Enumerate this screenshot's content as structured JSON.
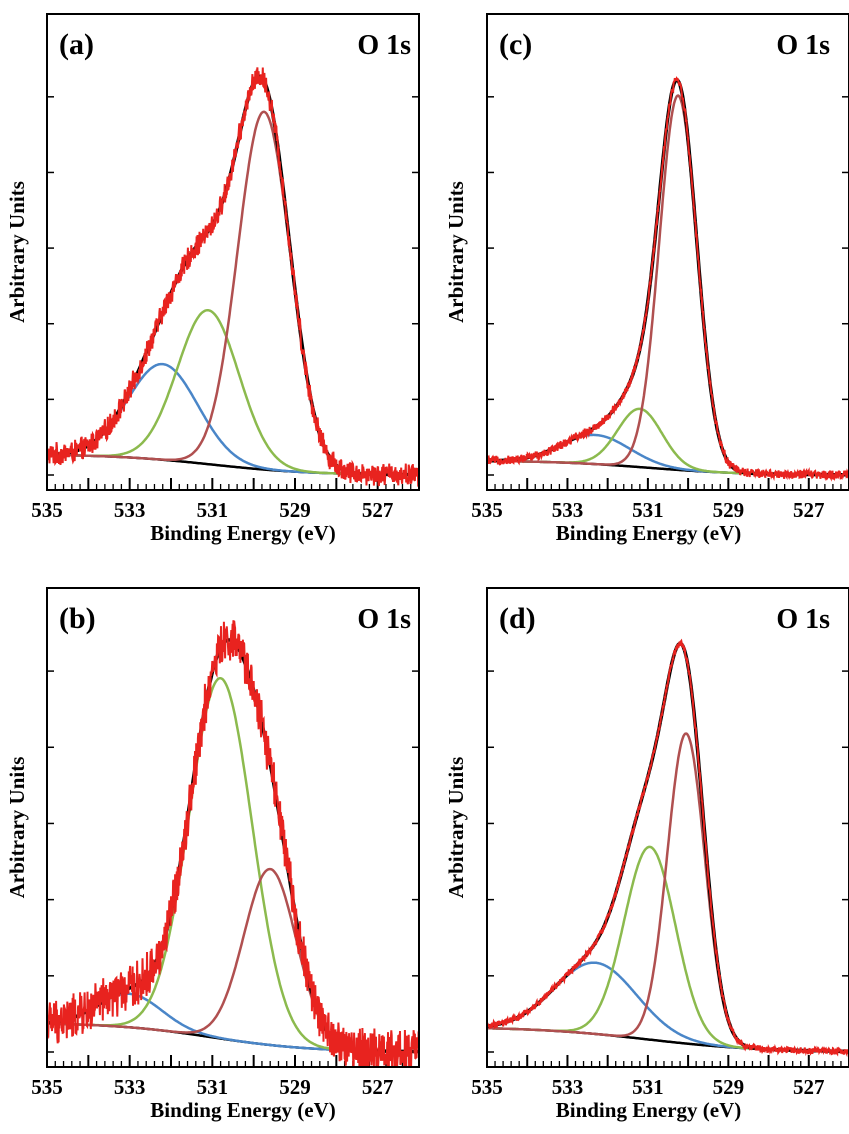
{
  "chart_data": [
    {
      "type": "line",
      "panel_label": "(a)",
      "title": "O 1s",
      "xlabel": "Binding Energy (eV)",
      "ylabel": "Arbitrary Units",
      "x_reversed": true,
      "xlim": [
        535,
        526
      ],
      "ylim": [
        0,
        1.0
      ],
      "x_ticks": [
        "535",
        "533",
        "531",
        "529",
        "527"
      ],
      "noise": 0.02,
      "background": {
        "high": 0.05,
        "low": 0.0,
        "center": 531.0,
        "width": 1.2
      },
      "components": [
        {
          "color": "#4a86c8",
          "center": 532.2,
          "height": 0.23,
          "fwhm": 2.0
        },
        {
          "color": "#8cba4e",
          "center": 531.1,
          "height": 0.37,
          "fwhm": 1.75
        },
        {
          "color": "#b05050",
          "center": 529.75,
          "height": 0.86,
          "fwhm": 1.5
        }
      ]
    },
    {
      "type": "line",
      "panel_label": "(b)",
      "title": "O 1s",
      "xlabel": "Binding Energy (eV)",
      "ylabel": "Arbitrary Units",
      "x_reversed": true,
      "xlim": [
        535,
        526
      ],
      "ylim": [
        0,
        1.0
      ],
      "x_ticks": [
        "535",
        "533",
        "531",
        "529",
        "527"
      ],
      "noise": 0.04,
      "background": {
        "high": 0.07,
        "low": 0.0,
        "center": 531.0,
        "width": 1.2
      },
      "components": [
        {
          "color": "#4a86c8",
          "center": 533.0,
          "height": 0.08,
          "fwhm": 1.8
        },
        {
          "color": "#8cba4e",
          "center": 530.8,
          "height": 0.86,
          "fwhm": 1.8
        },
        {
          "color": "#b05050",
          "center": 529.6,
          "height": 0.42,
          "fwhm": 1.5
        }
      ]
    },
    {
      "type": "line",
      "panel_label": "(c)",
      "title": "O 1s",
      "xlabel": "Binding Energy (eV)",
      "ylabel": "Arbitrary Units",
      "x_reversed": true,
      "xlim": [
        535,
        526
      ],
      "ylim": [
        0,
        1.0
      ],
      "x_ticks": [
        "535",
        "533",
        "531",
        "529",
        "527"
      ],
      "noise": 0.008,
      "background": {
        "high": 0.035,
        "low": 0.0,
        "center": 531.0,
        "width": 1.2
      },
      "components": [
        {
          "color": "#4a86c8",
          "center": 532.3,
          "height": 0.07,
          "fwhm": 2.0
        },
        {
          "color": "#8cba4e",
          "center": 531.2,
          "height": 0.14,
          "fwhm": 1.3
        },
        {
          "color": "#b05050",
          "center": 530.25,
          "height": 0.9,
          "fwhm": 1.1
        }
      ]
    },
    {
      "type": "line",
      "panel_label": "(d)",
      "title": "O 1s",
      "xlabel": "Binding Energy (eV)",
      "ylabel": "Arbitrary Units",
      "x_reversed": true,
      "xlim": [
        535,
        526
      ],
      "ylim": [
        0,
        1.0
      ],
      "x_ticks": [
        "535",
        "533",
        "531",
        "529",
        "527"
      ],
      "noise": 0.006,
      "background": {
        "high": 0.06,
        "low": 0.0,
        "center": 531.0,
        "width": 1.4
      },
      "components": [
        {
          "color": "#4a86c8",
          "center": 532.3,
          "height": 0.17,
          "fwhm": 2.4
        },
        {
          "color": "#8cba4e",
          "center": 530.95,
          "height": 0.46,
          "fwhm": 1.5
        },
        {
          "color": "#b05050",
          "center": 530.05,
          "height": 0.74,
          "fwhm": 1.1
        }
      ]
    }
  ],
  "colors": {
    "data": "#e8231f",
    "envelope": "#000000",
    "background_line": "#000000",
    "axes": "#000000"
  }
}
